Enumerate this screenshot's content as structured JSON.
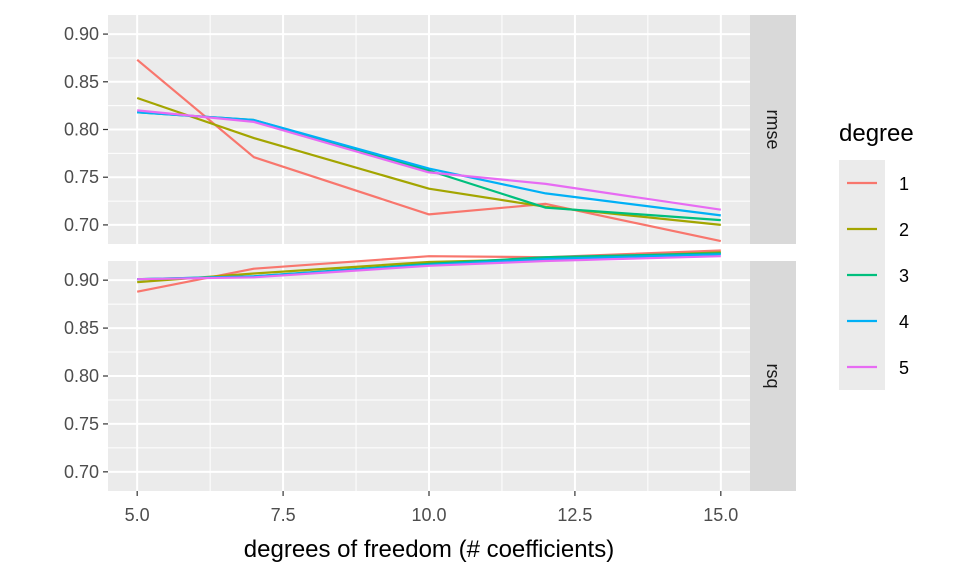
{
  "chart_data": {
    "type": "line",
    "xlabel": "degrees of freedom (# coefficients)",
    "x_ticks": [
      "5.0",
      "7.5",
      "10.0",
      "12.5",
      "15.0"
    ],
    "x_tick_values": [
      5,
      7.5,
      10,
      12.5,
      15
    ],
    "xlim": [
      4.5,
      15.5
    ],
    "y_ticks": [
      "0.70",
      "0.75",
      "0.80",
      "0.85",
      "0.90"
    ],
    "y_tick_values": [
      0.7,
      0.75,
      0.8,
      0.85,
      0.9
    ],
    "ylim": [
      0.68,
      0.92
    ],
    "grid": true,
    "legend": {
      "title": "degree",
      "placement": "right",
      "entries": [
        "1",
        "2",
        "3",
        "4",
        "5"
      ]
    },
    "colors": [
      "#F8766D",
      "#A3A500",
      "#00BF7D",
      "#00B0F6",
      "#E76BF3"
    ],
    "x": [
      5,
      7,
      10,
      12,
      15
    ],
    "panels": [
      {
        "strip": "rmse",
        "series": [
          {
            "name": "1",
            "values": [
              0.873,
              0.771,
              0.711,
              0.722,
              0.683
            ]
          },
          {
            "name": "2",
            "values": [
              0.833,
              0.791,
              0.738,
              0.719,
              0.7
            ]
          },
          {
            "name": "3",
            "values": [
              0.818,
              0.81,
              0.757,
              0.718,
              0.705
            ]
          },
          {
            "name": "4",
            "values": [
              0.818,
              0.81,
              0.759,
              0.733,
              0.71
            ]
          },
          {
            "name": "5",
            "values": [
              0.82,
              0.808,
              0.755,
              0.743,
              0.716
            ]
          }
        ]
      },
      {
        "strip": "rsq",
        "series": [
          {
            "name": "1",
            "values": [
              0.888,
              0.912,
              0.925,
              0.924,
              0.931
            ]
          },
          {
            "name": "2",
            "values": [
              0.898,
              0.907,
              0.919,
              0.922,
              0.929
            ]
          },
          {
            "name": "3",
            "values": [
              0.901,
              0.904,
              0.917,
              0.924,
              0.928
            ]
          },
          {
            "name": "4",
            "values": [
              0.901,
              0.904,
              0.916,
              0.922,
              0.927
            ]
          },
          {
            "name": "5",
            "values": [
              0.901,
              0.903,
              0.915,
              0.92,
              0.925
            ]
          }
        ]
      }
    ]
  }
}
